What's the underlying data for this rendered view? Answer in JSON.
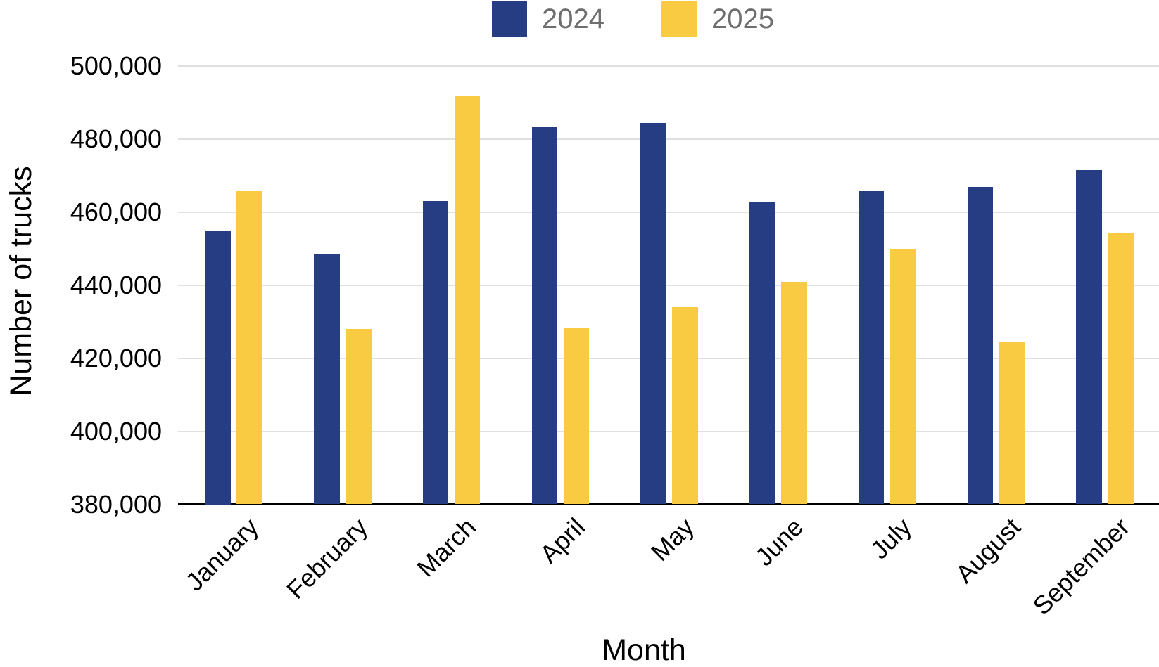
{
  "chart_data": {
    "type": "bar",
    "title": "",
    "xlabel": "Month",
    "ylabel": "Number of trucks",
    "categories": [
      "January",
      "February",
      "March",
      "April",
      "May",
      "June",
      "July",
      "August",
      "September"
    ],
    "series": [
      {
        "name": "2024",
        "color": "#263d84",
        "values": [
          455000,
          448400,
          463000,
          483200,
          484500,
          462800,
          465800,
          466900,
          471500
        ]
      },
      {
        "name": "2025",
        "color": "#f8cb42",
        "values": [
          465700,
          428000,
          492000,
          428200,
          433900,
          441000,
          450000,
          424300,
          454400
        ]
      }
    ],
    "ylim": [
      380000,
      500000
    ],
    "ytick_step": 20000,
    "ytick_labels": [
      "380,000",
      "400,000",
      "420,000",
      "440,000",
      "460,000",
      "480,000",
      "500,000"
    ],
    "grid": "horizontal",
    "legend_position": "top",
    "colors": {
      "background": "#ffffff",
      "gridline": "#e0e0e0",
      "axis_line": "#000000",
      "tick_text": "#000000",
      "legend_text": "#6e6e6e"
    }
  }
}
